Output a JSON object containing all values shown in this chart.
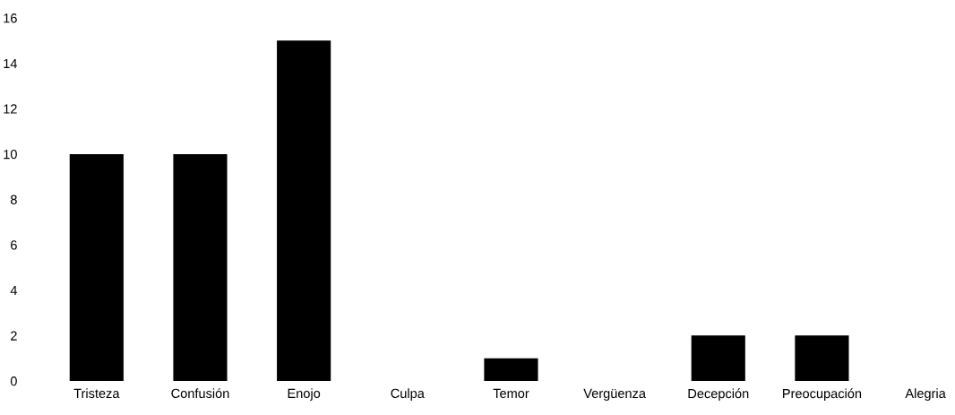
{
  "chart_data": {
    "type": "bar",
    "categories": [
      "Tristeza",
      "Confusión",
      "Enojo",
      "Culpa",
      "Temor",
      "Vergüenza",
      "Decepción",
      "Preocupación",
      "Alegria"
    ],
    "values": [
      10,
      10,
      15,
      0,
      1,
      0,
      2,
      2,
      0
    ],
    "color": "#000000",
    "ylim": [
      0,
      16
    ],
    "yticks": [
      0,
      2,
      4,
      6,
      8,
      10,
      12,
      14,
      16
    ],
    "grid": false,
    "legend": false
  }
}
